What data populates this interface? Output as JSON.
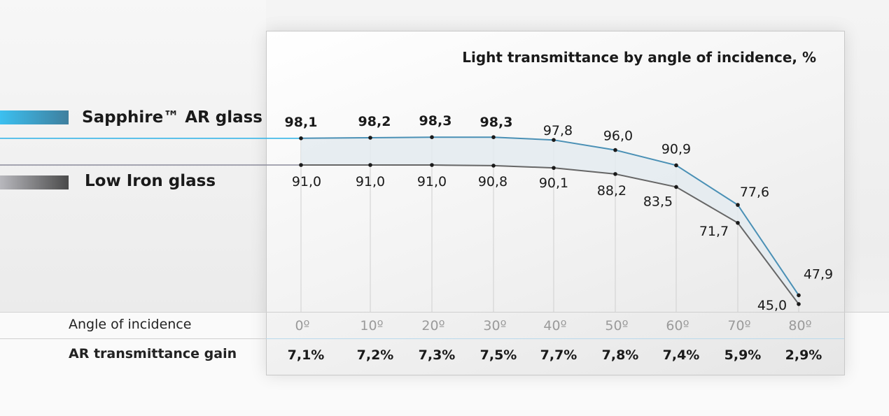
{
  "legend": {
    "ar_label": "Sapphire™ AR glass",
    "low_label": "Low Iron glass"
  },
  "colors": {
    "ar": "#4a90b5",
    "ar_light": "#38b6e8",
    "low": "#666666",
    "band": "#e4ebf0"
  },
  "rows": {
    "angle_label": "Angle of incidence",
    "gain_label": "AR transmittance gain"
  },
  "chart_data": {
    "type": "line",
    "title": "Light transmittance by angle of incidence, %",
    "x": [
      0,
      10,
      20,
      30,
      40,
      50,
      60,
      70,
      80
    ],
    "x_tick_labels": [
      "0º",
      "10º",
      "20º",
      "30º",
      "40º",
      "50º",
      "60º",
      "70º",
      "80º"
    ],
    "series": [
      {
        "name": "Sapphire™ AR glass",
        "values": [
          98.1,
          98.2,
          98.3,
          98.3,
          97.8,
          96.0,
          90.9,
          77.6,
          47.9
        ],
        "labels": [
          "98,1",
          "98,2",
          "98,3",
          "98,3",
          "97,8",
          "96,0",
          "90,9",
          "77,6",
          "47,9"
        ]
      },
      {
        "name": "Low Iron glass",
        "values": [
          91.0,
          91.0,
          91.0,
          90.8,
          90.1,
          88.2,
          83.5,
          71.7,
          45.0
        ],
        "labels": [
          "91,0",
          "91,0",
          "91,0",
          "90,8",
          "90,1",
          "88,2",
          "83,5",
          "71,7",
          "45,0"
        ]
      }
    ],
    "gain": [
      "7,1%",
      "7,2%",
      "7,3%",
      "7,5%",
      "7,7%",
      "7,8%",
      "7,4%",
      "5,9%",
      "2,9%"
    ],
    "grid": "vertical",
    "legend_placement": "left"
  }
}
